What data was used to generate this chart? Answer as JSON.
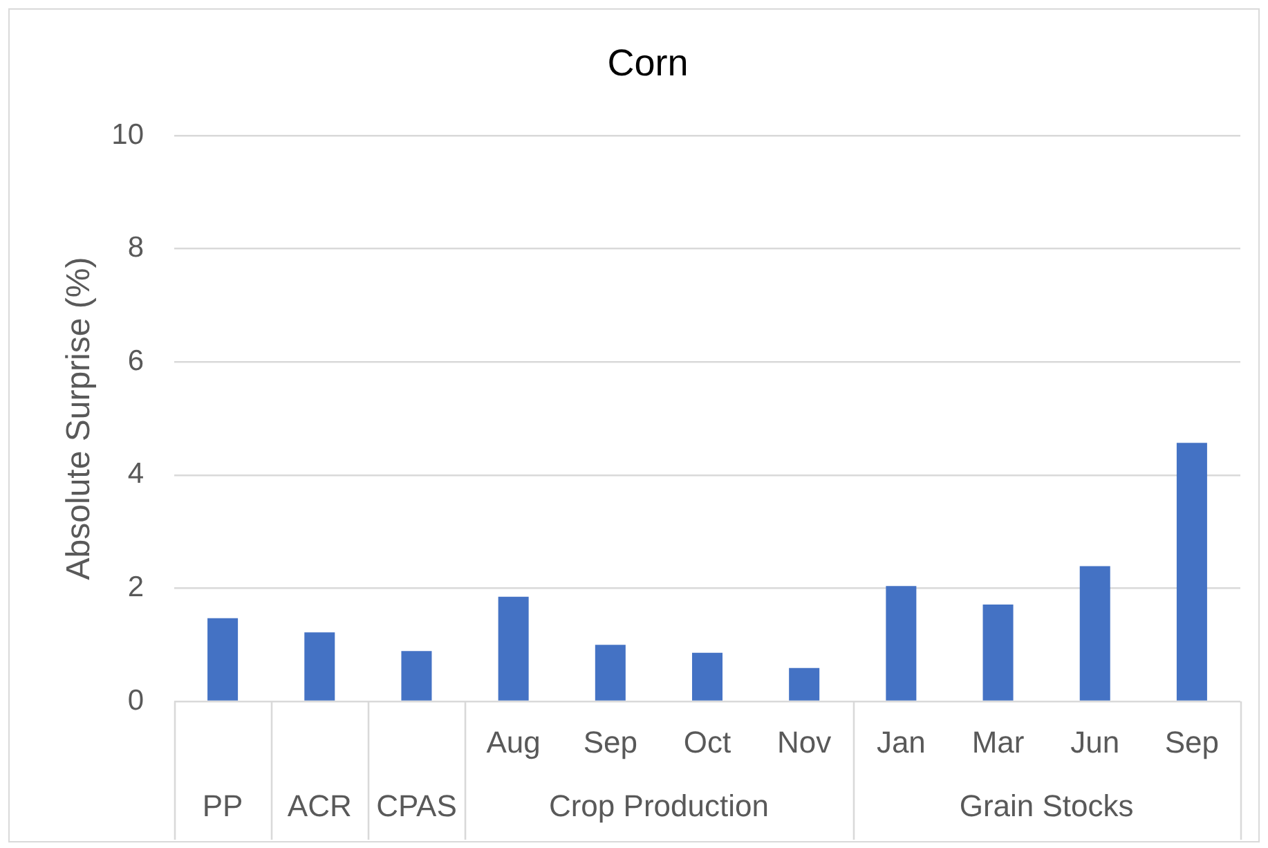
{
  "chart_data": {
    "type": "bar",
    "title": "Corn",
    "ylabel": "Absolute Surprise (%)",
    "categories": [
      null,
      null,
      null,
      "Aug",
      "Sep",
      "Oct",
      "Nov",
      "Jan",
      "Mar",
      "Jun",
      "Sep"
    ],
    "values": [
      1.47,
      1.22,
      0.89,
      1.85,
      1.0,
      0.86,
      0.59,
      2.04,
      1.71,
      2.39,
      4.57
    ],
    "color": "#4472c4",
    "ylim": [
      0,
      10
    ],
    "yticks": [
      0,
      2,
      4,
      6,
      8,
      10
    ],
    "grid": "y",
    "legend": false,
    "annotations": [
      "PP",
      "ACR",
      "CPAS",
      "Crop Production",
      "Grain Stocks"
    ]
  }
}
